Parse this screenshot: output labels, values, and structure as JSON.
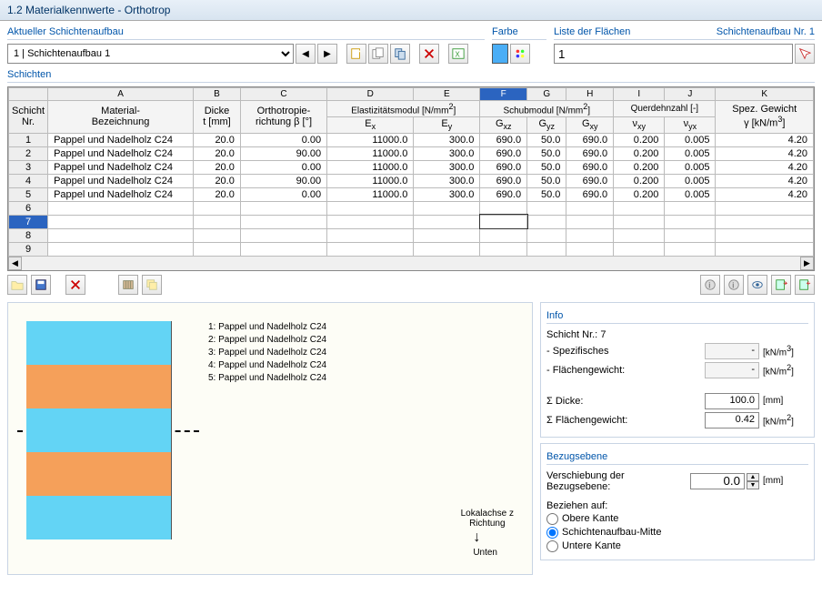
{
  "window_title": "1.2 Materialkennwerte - Orthotrop",
  "aktuell": {
    "header": "Aktueller Schichtenaufbau",
    "dropdown": "1 | Schichtenaufbau 1"
  },
  "farbe": {
    "header": "Farbe",
    "swatch": "#4aaef6"
  },
  "liste": {
    "header": "Liste der Flächen",
    "right_header": "Schichtenaufbau Nr. 1",
    "value": "1"
  },
  "schichten": {
    "header": "Schichten",
    "col_letters": [
      "A",
      "B",
      "C",
      "D",
      "E",
      "F",
      "G",
      "H",
      "I",
      "J",
      "K"
    ],
    "selected_col": 5,
    "head1": {
      "schicht": "Schicht",
      "material": "Material-",
      "dicke": "Dicke",
      "ortho": "Orthotropie-",
      "emod_group": "Elastizitätsmodul [N/mm²]",
      "gmod_group": "Schubmodul [N/mm²]",
      "quer_group": "Querdehnzahl [-]",
      "spez": "Spez. Gewicht"
    },
    "head2": {
      "nr": "Nr.",
      "bez": "Bezeichnung",
      "t": "t [mm]",
      "beta": "richtung β [°]",
      "ex": "Eₓ",
      "ey": "Eᵧ",
      "gxz": "Gₓ𝓏",
      "gyz": "Gᵧ𝓏",
      "gxy": "Gₓᵧ",
      "vxy": "νₓᵧ",
      "vyx": "νᵧₓ",
      "gamma": "γ [kN/m³]"
    },
    "rows": [
      {
        "n": "1",
        "bez": "Pappel und Nadelholz C24",
        "t": "20.0",
        "beta": "0.00",
        "ex": "11000.0",
        "ey": "300.0",
        "gxz": "690.0",
        "gyz": "50.0",
        "gxy": "690.0",
        "vxy": "0.200",
        "vyx": "0.005",
        "g": "4.20"
      },
      {
        "n": "2",
        "bez": "Pappel und Nadelholz C24",
        "t": "20.0",
        "beta": "90.00",
        "ex": "11000.0",
        "ey": "300.0",
        "gxz": "690.0",
        "gyz": "50.0",
        "gxy": "690.0",
        "vxy": "0.200",
        "vyx": "0.005",
        "g": "4.20"
      },
      {
        "n": "3",
        "bez": "Pappel und Nadelholz C24",
        "t": "20.0",
        "beta": "0.00",
        "ex": "11000.0",
        "ey": "300.0",
        "gxz": "690.0",
        "gyz": "50.0",
        "gxy": "690.0",
        "vxy": "0.200",
        "vyx": "0.005",
        "g": "4.20"
      },
      {
        "n": "4",
        "bez": "Pappel und Nadelholz C24",
        "t": "20.0",
        "beta": "90.00",
        "ex": "11000.0",
        "ey": "300.0",
        "gxz": "690.0",
        "gyz": "50.0",
        "gxy": "690.0",
        "vxy": "0.200",
        "vyx": "0.005",
        "g": "4.20"
      },
      {
        "n": "5",
        "bez": "Pappel und Nadelholz C24",
        "t": "20.0",
        "beta": "0.00",
        "ex": "11000.0",
        "ey": "300.0",
        "gxz": "690.0",
        "gyz": "50.0",
        "gxy": "690.0",
        "vxy": "0.200",
        "vyx": "0.005",
        "g": "4.20"
      }
    ],
    "empty_rows": [
      "6",
      "7",
      "8",
      "9"
    ],
    "selected_row": "7"
  },
  "diagram": {
    "layers": [
      {
        "label": "1: Pappel und Nadelholz C24",
        "color_class": "c0"
      },
      {
        "label": "2: Pappel und Nadelholz C24",
        "color_class": "c90"
      },
      {
        "label": "3: Pappel und Nadelholz C24",
        "color_class": "c0"
      },
      {
        "label": "4: Pappel und Nadelholz C24",
        "color_class": "c90"
      },
      {
        "label": "5: Pappel und Nadelholz C24",
        "color_class": "c0"
      }
    ],
    "colors": {
      "c0": "#63d4f5",
      "c90": "#f5a05a"
    },
    "axis": "Lokalachse z\nRichtung",
    "unten": "Unten"
  },
  "info": {
    "header": "Info",
    "schicht_nr_label": "Schicht Nr.:",
    "schicht_nr_value": "7",
    "spez_label": "- Spezifisches",
    "spez_value": "-",
    "spez_unit": "[kN/m³]",
    "flg_label": "- Flächengewicht:",
    "flg_value": "-",
    "flg_unit": "[kN/m²]",
    "sum_dicke_label": "Σ Dicke:",
    "sum_dicke_value": "100.0",
    "sum_dicke_unit": "[mm]",
    "sum_flg_label": "Σ Flächengewicht:",
    "sum_flg_value": "0.42",
    "sum_flg_unit": "[kN/m²]"
  },
  "bezug": {
    "header": "Bezugsebene",
    "versch_label": "Verschiebung der Bezugsebene:",
    "versch_value": "0.0",
    "versch_unit": "[mm]",
    "beziehen_label": "Beziehen auf:",
    "opt1": "Obere Kante",
    "opt2": "Schichtenaufbau-Mitte",
    "opt3": "Untere Kante",
    "selected": "opt2"
  }
}
